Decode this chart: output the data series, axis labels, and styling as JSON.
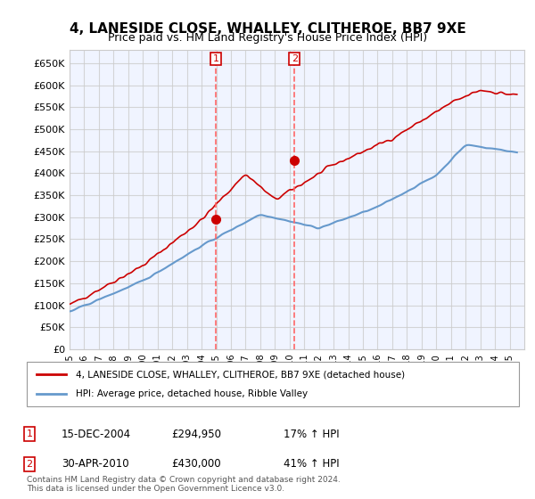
{
  "title": "4, LANESIDE CLOSE, WHALLEY, CLITHEROE, BB7 9XE",
  "subtitle": "Price paid vs. HM Land Registry's House Price Index (HPI)",
  "legend_line1": "4, LANESIDE CLOSE, WHALLEY, CLITHEROE, BB7 9XE (detached house)",
  "legend_line2": "HPI: Average price, detached house, Ribble Valley",
  "sale1_label": "1",
  "sale1_date": "15-DEC-2004",
  "sale1_price": "£294,950",
  "sale1_hpi": "17% ↑ HPI",
  "sale1_year": 2004.96,
  "sale1_value": 294950,
  "sale2_label": "2",
  "sale2_date": "30-APR-2010",
  "sale2_price": "£430,000",
  "sale2_hpi": "41% ↑ HPI",
  "sale2_year": 2010.33,
  "sale2_value": 430000,
  "red_color": "#cc0000",
  "blue_color": "#6699cc",
  "vline_color": "#ff6666",
  "background_color": "#ffffff",
  "plot_bg_color": "#f0f4ff",
  "grid_color": "#cccccc",
  "footer": "Contains HM Land Registry data © Crown copyright and database right 2024.\nThis data is licensed under the Open Government Licence v3.0.",
  "ylim": [
    0,
    680000
  ],
  "yticks": [
    0,
    50000,
    100000,
    150000,
    200000,
    250000,
    300000,
    350000,
    400000,
    450000,
    500000,
    550000,
    600000,
    650000
  ],
  "xmin": 1995,
  "xmax": 2026
}
